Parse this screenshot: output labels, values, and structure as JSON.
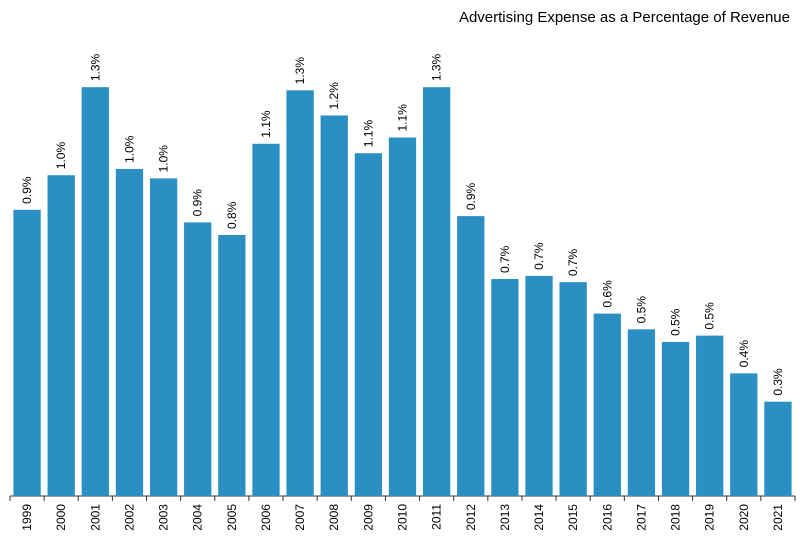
{
  "chart_data": {
    "type": "bar",
    "title": "Advertising Expense as a Percentage of Revenue",
    "categories": [
      "1999",
      "2000",
      "2001",
      "2002",
      "2003",
      "2004",
      "2005",
      "2006",
      "2007",
      "2008",
      "2009",
      "2010",
      "2011",
      "2012",
      "2013",
      "2014",
      "2015",
      "2016",
      "2017",
      "2018",
      "2019",
      "2020",
      "2021"
    ],
    "values": [
      0.91,
      1.02,
      1.3,
      1.04,
      1.01,
      0.87,
      0.83,
      1.12,
      1.29,
      1.21,
      1.09,
      1.14,
      1.3,
      0.89,
      0.69,
      0.7,
      0.68,
      0.58,
      0.53,
      0.49,
      0.51,
      0.39,
      0.3
    ],
    "value_labels": [
      "0.9%",
      "1.0%",
      "1.3%",
      "1.0%",
      "1.0%",
      "0.9%",
      "0.8%",
      "1.1%",
      "1.3%",
      "1.2%",
      "1.1%",
      "1.1%",
      "1.3%",
      "0.9%",
      "0.7%",
      "0.7%",
      "0.7%",
      "0.6%",
      "0.5%",
      "0.5%",
      "0.5%",
      "0.4%",
      "0.3%"
    ],
    "color": "#2b8fc3",
    "ylim": [
      0,
      1.45
    ]
  }
}
